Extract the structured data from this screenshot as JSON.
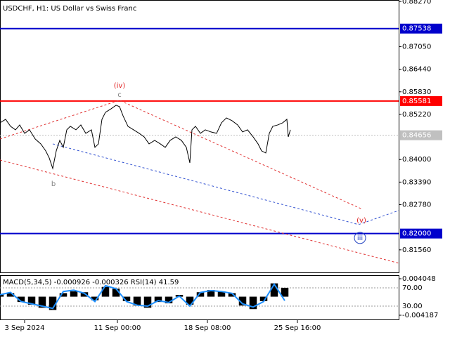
{
  "chart_data": [
    {
      "type": "line",
      "title": "USDCHF, H1:  US Dollar vs Swiss Franc",
      "xlim": [
        0,
        567
      ],
      "ylim": [
        0.8095,
        0.88311
      ],
      "yticks": [
        {
          "value": 0.8827,
          "label": "0.88270"
        },
        {
          "value": 0.8705,
          "label": "0.87050"
        },
        {
          "value": 0.8644,
          "label": "0.86440"
        },
        {
          "value": 0.8583,
          "label": "0.85830"
        },
        {
          "value": 0.8522,
          "label": "0.85220"
        },
        {
          "value": 0.84,
          "label": "0.84000"
        },
        {
          "value": 0.8339,
          "label": "0.83390"
        },
        {
          "value": 0.8278,
          "label": "0.82780"
        },
        {
          "value": 0.8156,
          "label": "0.81560"
        }
      ],
      "x": [
        0,
        8,
        15,
        22,
        28,
        35,
        42,
        50,
        58,
        65,
        70,
        75,
        80,
        85,
        90,
        95,
        100,
        108,
        115,
        122,
        130,
        135,
        140,
        145,
        150,
        158,
        165,
        170,
        175,
        182,
        190,
        198,
        205,
        212,
        220,
        228,
        235,
        242,
        250,
        258,
        265,
        270,
        273,
        278,
        285,
        292,
        300,
        308,
        315,
        322,
        330,
        338,
        345,
        352,
        360,
        367,
        372,
        378,
        383,
        388,
        395,
        402,
        408,
        410,
        413
      ],
      "values": [
        0.84992,
        0.85087,
        0.84898,
        0.84803,
        0.84935,
        0.84708,
        0.84803,
        0.84556,
        0.84423,
        0.84234,
        0.84044,
        0.8376,
        0.84234,
        0.84518,
        0.84329,
        0.84803,
        0.84898,
        0.84803,
        0.84935,
        0.84708,
        0.84803,
        0.84329,
        0.84423,
        0.85087,
        0.85277,
        0.85372,
        0.85466,
        0.85429,
        0.85182,
        0.84898,
        0.84803,
        0.84708,
        0.84613,
        0.84423,
        0.84518,
        0.84423,
        0.84329,
        0.84518,
        0.84613,
        0.84518,
        0.84329,
        0.83911,
        0.84803,
        0.84898,
        0.84708,
        0.84803,
        0.84746,
        0.84708,
        0.84992,
        0.85125,
        0.85049,
        0.84935,
        0.84746,
        0.84803,
        0.84613,
        0.84423,
        0.84234,
        0.84177,
        0.84708,
        0.84898,
        0.84935,
        0.84992,
        0.85087,
        0.84613,
        0.84803
      ],
      "color": "#000000",
      "levels": [
        {
          "value": 0.87538,
          "color": "#0000cc"
        },
        {
          "value": 0.85581,
          "color": "#ff0000"
        },
        {
          "value": 0.82,
          "label": "0.82000",
          "color": "#0000cc"
        },
        {
          "value": 0.84656,
          "color": "#c0c0c0"
        }
      ],
      "trendlines": [
        {
          "x": [
            0,
            170,
            515
          ],
          "values": [
            0.84556,
            0.85599,
            0.8266
          ],
          "color": "#e03030"
        },
        {
          "x": [
            0,
            567
          ],
          "values": [
            0.83987,
            0.812
          ],
          "color": "#e03030"
        },
        {
          "x": [
            75,
            510,
            567
          ],
          "values": [
            0.84423,
            0.82243,
            0.82622
          ],
          "color": "#3050d0"
        }
      ],
      "annotations": [
        {
          "text": "(iv)",
          "x": 170,
          "y": 0.85997,
          "color": "#e02020"
        },
        {
          "text": "c",
          "x": 170,
          "y": 0.85751,
          "color": "#808080"
        },
        {
          "text": "b",
          "x": 76,
          "y": 0.83342,
          "color": "#808080"
        },
        {
          "text": "(v)",
          "x": 514,
          "y": 0.82356,
          "color": "#e02020"
        },
        {
          "text": "iii",
          "x": 512,
          "y": 0.81882,
          "color": "#2040c0"
        }
      ]
    },
    {
      "type": "bar",
      "title": "MACD(5,34,5) -0.000926 -0.000326 RSI(14) 41.59",
      "xlim": [
        0,
        567
      ],
      "xticks": [
        {
          "value": 35,
          "label": "3 Sep 2024"
        },
        {
          "value": 167,
          "label": "11 Sep 00:00"
        },
        {
          "value": 295,
          "label": "18 Sep 08:00"
        },
        {
          "value": 423,
          "label": "25 Sep 16:00"
        }
      ],
      "ylim": [
        -0.004187,
        0.004048
      ],
      "yticks": [
        0.004048,
        -0.004187
      ],
      "y2lim": [
        10,
        90
      ],
      "y2ticks": [
        {
          "value": 70,
          "label": "70.00"
        },
        {
          "value": 30,
          "label": "30.00"
        }
      ],
      "x": [
        0,
        15,
        30,
        45,
        60,
        75,
        90,
        105,
        120,
        135,
        150,
        165,
        180,
        195,
        210,
        225,
        240,
        255,
        270,
        285,
        300,
        315,
        330,
        345,
        360,
        375,
        390,
        405
      ],
      "values": [
        0.0005,
        0.0008,
        -0.0012,
        -0.0018,
        -0.0025,
        -0.003,
        0.0008,
        0.0012,
        0.001,
        -0.0008,
        0.0022,
        0.0018,
        -0.001,
        -0.002,
        -0.0025,
        -0.0012,
        -0.0015,
        0.0004,
        -0.0018,
        0.001,
        0.0015,
        0.0012,
        0.0008,
        -0.002,
        -0.0028,
        -0.001,
        0.003,
        0.002
      ],
      "color": "#000000",
      "series": [
        {
          "axis": "y2",
          "color": "#1e90ff",
          "values": [
            55,
            60,
            40,
            35,
            30,
            25,
            62,
            65,
            58,
            40,
            75,
            68,
            40,
            32,
            30,
            42,
            38,
            52,
            30,
            60,
            64,
            62,
            58,
            35,
            28,
            40,
            78,
            42
          ]
        }
      ]
    }
  ]
}
